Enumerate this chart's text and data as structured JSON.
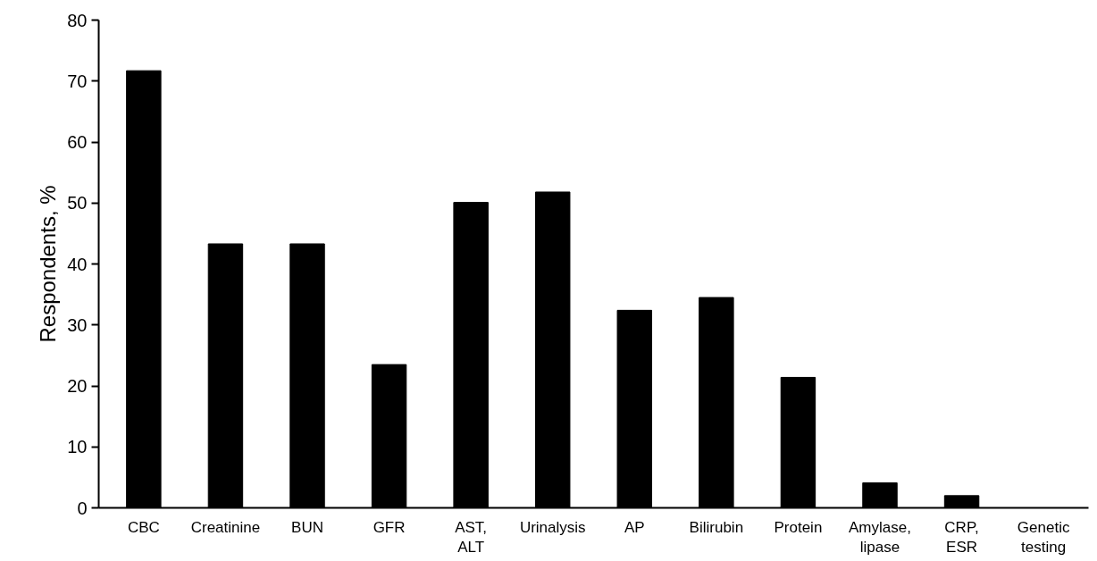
{
  "chart_data": {
    "type": "bar",
    "ylabel": "Respondents, %",
    "categories": [
      "CBC",
      "Creatinine",
      "BUN",
      "GFR",
      "AST,\nALT",
      "Urinalysis",
      "AP",
      "Bilirubin",
      "Protein",
      "Amylase,\nlipase",
      "CRP,\nESR",
      "Genetic\ntesting"
    ],
    "values": [
      71.7,
      43.3,
      43.3,
      23.5,
      50.1,
      51.8,
      32.4,
      34.5,
      21.4,
      4.1,
      2.0,
      0
    ],
    "color": "#000000",
    "ylim": [
      0,
      80
    ],
    "yticks": [
      0,
      10,
      20,
      30,
      40,
      50,
      60,
      70,
      80
    ],
    "grid": false
  }
}
